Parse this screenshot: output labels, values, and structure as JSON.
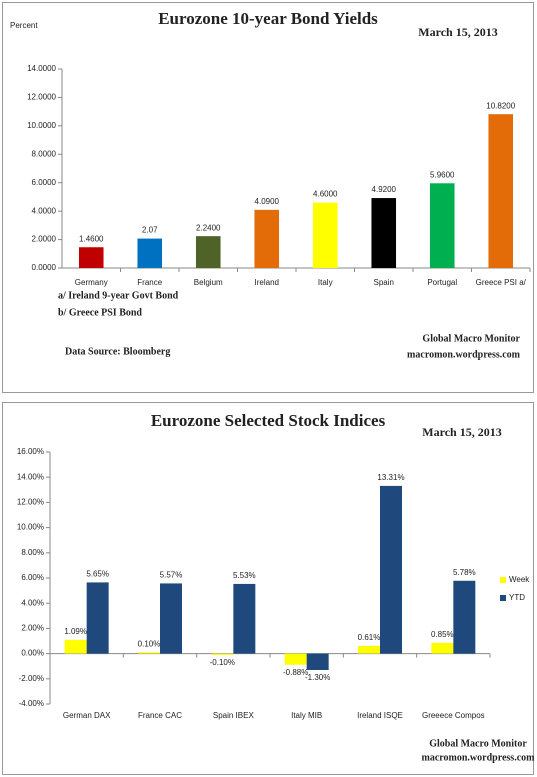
{
  "chart_data": [
    {
      "type": "bar",
      "title": "Eurozone 10-year Bond Yields",
      "subtitle": "March 15, 2013",
      "y_label": "Percent",
      "categories": [
        "Germany",
        "France",
        "Belgium",
        "Ireland",
        "Italy",
        "Spain",
        "Portugal",
        "Greece PSI a/"
      ],
      "values": [
        1.46,
        2.07,
        2.24,
        4.09,
        4.6,
        4.92,
        5.96,
        10.82
      ],
      "value_labels": [
        "1.4600",
        "2.07",
        "2.2400",
        "4.0900",
        "4.6000",
        "4.9200",
        "5.9600",
        "10.8200"
      ],
      "colors": [
        "#c00000",
        "#0070c0",
        "#4f6228",
        "#e36c09",
        "#ffff00",
        "#000000",
        "#00b050",
        "#e36c09"
      ],
      "ylim": [
        0,
        14
      ],
      "yticks": [
        {
          "value": 0,
          "label": "0.0000"
        },
        {
          "value": 2,
          "label": "2.0000"
        },
        {
          "value": 4,
          "label": "4.0000"
        },
        {
          "value": 6,
          "label": "6.0000"
        },
        {
          "value": 8,
          "label": "8.0000"
        },
        {
          "value": 10,
          "label": "10.0000"
        },
        {
          "value": 12,
          "label": "12.0000"
        },
        {
          "value": 14,
          "label": "14.0000"
        }
      ],
      "grid": false,
      "notes": [
        "a/ Ireland 9-year Govt Bond",
        "b/ Greece PSI Bond",
        "Data Source:  Bloomberg",
        "Global Macro Monitor",
        "macromon.wordpress.com"
      ]
    },
    {
      "type": "grouped_bar",
      "title": "Eurozone Selected Stock Indices",
      "subtitle": "March 15, 2013",
      "categories": [
        "German DAX",
        "France CAC",
        "Spain IBEX",
        "Italy MIB",
        "Ireland ISQE",
        "Greeece Compos"
      ],
      "series": [
        {
          "name": "Week",
          "color": "#ffff00",
          "values": [
            1.09,
            0.1,
            -0.1,
            -0.88,
            0.61,
            0.85
          ],
          "value_labels": [
            "1.09%",
            "0.10%",
            "-0.10%",
            "-0.88%",
            "0.61%",
            "0.85%"
          ]
        },
        {
          "name": "YTD",
          "color": "#1f497d",
          "values": [
            5.65,
            5.57,
            5.53,
            -1.3,
            13.31,
            5.78
          ],
          "value_labels": [
            "5.65%",
            "5.57%",
            "5.53%",
            "-1.30%",
            "13.31%",
            "5.78%"
          ]
        }
      ],
      "ylim": [
        -4,
        16
      ],
      "yticks": [
        {
          "value": -4,
          "label": "-4.00%"
        },
        {
          "value": -2,
          "label": "-2.00%"
        },
        {
          "value": 0,
          "label": "0.00%"
        },
        {
          "value": 2,
          "label": "2.00%"
        },
        {
          "value": 4,
          "label": "4.00%"
        },
        {
          "value": 6,
          "label": "6.00%"
        },
        {
          "value": 8,
          "label": "8.00%"
        },
        {
          "value": 10,
          "label": "10.00%"
        },
        {
          "value": 12,
          "label": "12.00%"
        },
        {
          "value": 14,
          "label": "14.00%"
        },
        {
          "value": 16,
          "label": "16.00%"
        }
      ],
      "grid": false,
      "legend": "right",
      "notes": [
        "Global Macro Monitor",
        "macromon.wordpress.com"
      ]
    }
  ]
}
